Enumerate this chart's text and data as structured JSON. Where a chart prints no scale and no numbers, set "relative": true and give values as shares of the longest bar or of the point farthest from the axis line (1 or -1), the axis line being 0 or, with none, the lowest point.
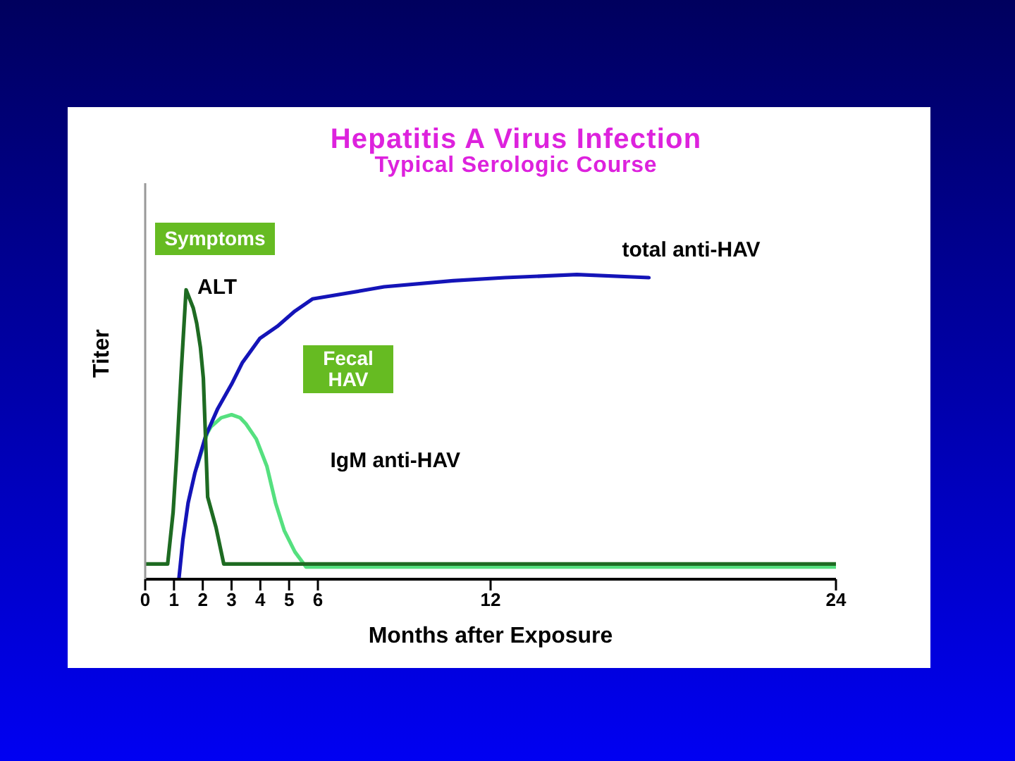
{
  "chart_data": {
    "type": "line",
    "title": "Hepatitis A Virus Infection",
    "subtitle": "Typical Serologic Course",
    "xlabel": "Months after Exposure",
    "ylabel": "Titer",
    "relative": true,
    "xlim": [
      0,
      24
    ],
    "xticks": [
      0,
      1,
      2,
      3,
      4,
      5,
      6,
      12,
      24
    ],
    "series": [
      {
        "name": "IgM anti-HAV",
        "color": "#55e07f",
        "x": [
          1.8,
          2.16,
          2.28,
          2.64,
          3.0,
          3.3,
          3.5,
          3.86,
          4.23,
          4.53,
          4.83,
          5.2,
          5.59,
          24
        ],
        "values": [
          0.37,
          0.48,
          0.5,
          0.53,
          0.54,
          0.53,
          0.51,
          0.46,
          0.37,
          0.25,
          0.16,
          0.09,
          0.04,
          0.04
        ]
      },
      {
        "name": "total anti-HAV",
        "color": "#1414b8",
        "x": [
          1.17,
          1.31,
          1.49,
          1.73,
          2.1,
          2.52,
          3.0,
          3.37,
          3.98,
          4.59,
          5.2,
          5.81,
          7.7,
          8.3,
          10.7,
          12.5,
          15,
          17.5
        ],
        "values": [
          0,
          0.13,
          0.25,
          0.35,
          0.47,
          0.56,
          0.64,
          0.71,
          0.79,
          0.83,
          0.88,
          0.92,
          0.95,
          0.96,
          0.98,
          0.99,
          1,
          0.99
        ]
      },
      {
        "name": "ALT",
        "color": "#1e6b22",
        "x": [
          0,
          0.78,
          0.97,
          1.09,
          1.25,
          1.42,
          1.67,
          1.79,
          1.92,
          2.02,
          2.09,
          2.17,
          2.46,
          2.73,
          24
        ],
        "values": [
          0.05,
          0.05,
          0.22,
          0.4,
          0.68,
          0.95,
          0.89,
          0.84,
          0.76,
          0.66,
          0.48,
          0.27,
          0.17,
          0.05,
          0.05
        ]
      }
    ],
    "annotations": [
      "Symptoms",
      "Fecal HAV"
    ],
    "marker": "none",
    "line_style": "solid"
  }
}
